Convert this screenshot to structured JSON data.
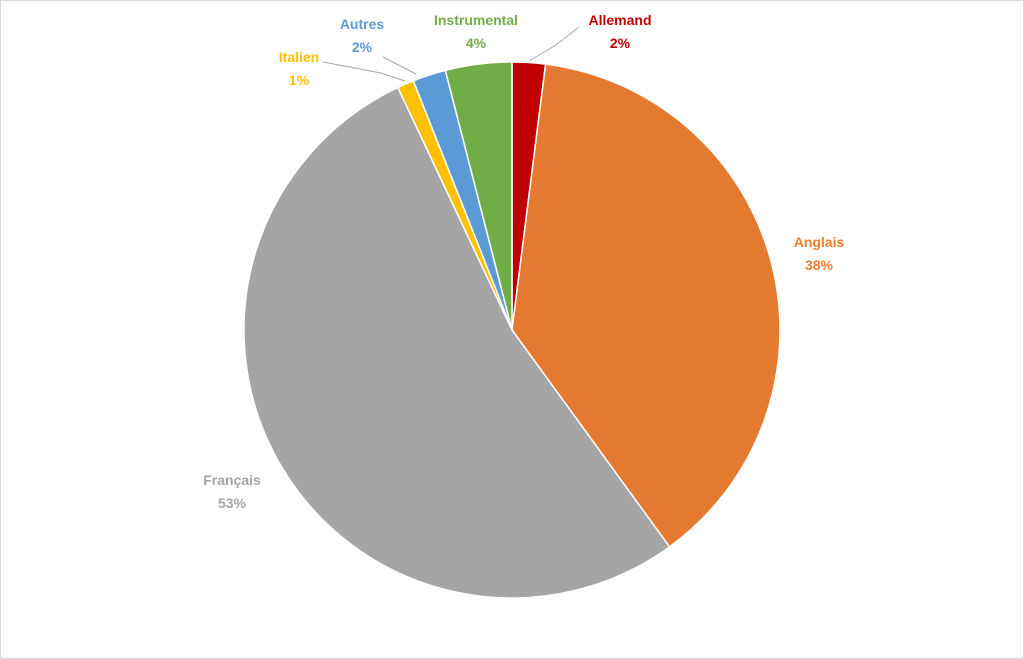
{
  "chart_data": {
    "type": "pie",
    "title": "",
    "start_angle_deg": 0,
    "direction": "clockwise",
    "slices": [
      {
        "name": "Allemand",
        "label": "2%",
        "value": 2,
        "color": "#c00000"
      },
      {
        "name": "Anglais",
        "label": "38%",
        "value": 38,
        "color": "#e47a30"
      },
      {
        "name": "Français",
        "label": "53%",
        "value": 53,
        "color": "#a5a5a5"
      },
      {
        "name": "Italien",
        "label": "1%",
        "value": 1,
        "color": "#ffc000"
      },
      {
        "name": "Autres",
        "label": "2%",
        "value": 2,
        "color": "#5b9bd5"
      },
      {
        "name": "Instrumental",
        "label": "4%",
        "value": 4,
        "color": "#70ad47"
      }
    ],
    "label_text_colors": {
      "Allemand": "#c00000",
      "Anglais": "#ed7d31",
      "Français": "#a5a5a5",
      "Italien": "#ffc000",
      "Autres": "#5b9bd5",
      "Instrumental": "#70ad47"
    },
    "leader_line_color": "#a6a6a6",
    "legend": "none"
  }
}
